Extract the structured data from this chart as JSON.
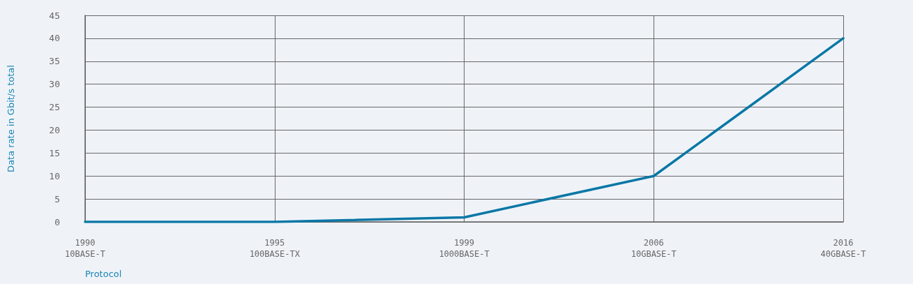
{
  "chart_data": {
    "type": "line",
    "xlabel": "Protocol",
    "ylabel": "Data rate in Gbit/s total",
    "categories": [
      "1990\n10BASE-T",
      "1995\n100BASE-TX",
      "1999\n1000BASE-T",
      "2006\n10GBASE-T",
      "2016\n40GBASE-T"
    ],
    "series": [
      {
        "color": "#0a77a6",
        "values": [
          0,
          0,
          1,
          10,
          40
        ]
      }
    ],
    "ylim": [
      0,
      45
    ],
    "yticks": [
      0,
      5,
      10,
      15,
      20,
      25,
      30,
      35,
      40,
      45
    ],
    "grid": true,
    "marker": "none",
    "line_style": "solid"
  }
}
